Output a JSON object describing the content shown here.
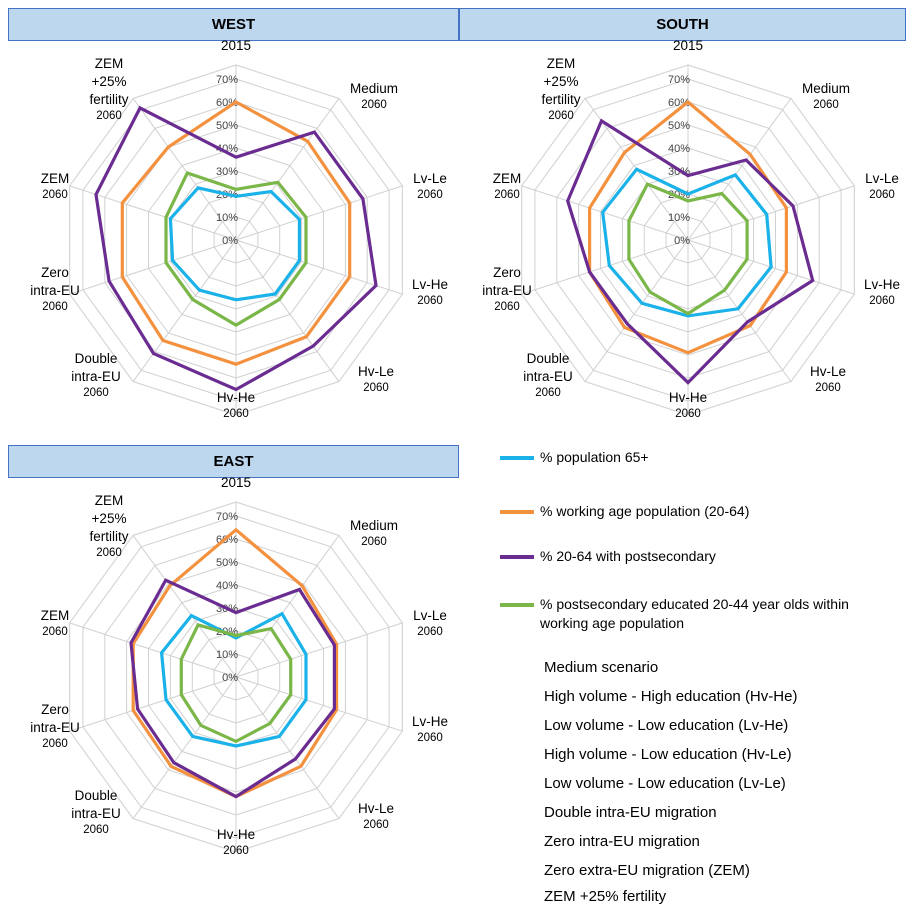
{
  "regions": {
    "west": "WEST",
    "south": "SOUTH",
    "east": "EAST"
  },
  "legend": [
    {
      "label": "% population 65+",
      "color": "#1ab2e8"
    },
    {
      "label": "% working age population (20-64)",
      "color": "#f4913e"
    },
    {
      "label": "% 20-64  with postsecondary",
      "color": "#6a2c91"
    },
    {
      "label": "% postsecondary educated 20-44 year olds within working age population",
      "color": "#7ab648"
    }
  ],
  "scenarios": [
    "Medium scenario",
    "High volume - High education (Hv-He)",
    "Low volume - Low education (Lv-He)",
    "High volume - Low education (Hv-Le)",
    "Low volume - Low education (Lv-Le)",
    "Double intra-EU migration",
    "Zero intra-EU migration",
    "Zero extra-EU migration (ZEM)",
    "ZEM +25% fertility"
  ],
  "chart_data": [
    {
      "type": "radar",
      "title": "WEST",
      "axes": [
        {
          "label": [
            "2015"
          ]
        },
        {
          "label": [
            "Medium",
            "2060"
          ]
        },
        {
          "label": [
            "Lv-Le",
            "2060"
          ]
        },
        {
          "label": [
            "Lv-He",
            "2060"
          ]
        },
        {
          "label": [
            "Hv-Le",
            "2060"
          ]
        },
        {
          "label": [
            "Hv-He",
            "2060"
          ]
        },
        {
          "label": [
            "Double",
            "intra-EU",
            "2060"
          ]
        },
        {
          "label": [
            "Zero",
            "intra-EU",
            "2060"
          ]
        },
        {
          "label": [
            "ZEM",
            "2060"
          ]
        },
        {
          "label": [
            "ZEM",
            "+25%",
            "fertility",
            "2060"
          ]
        }
      ],
      "ticks": [
        "0%",
        "10%",
        "20%",
        "30%",
        "40%",
        "50%",
        "60%",
        "70%"
      ],
      "rmax": 70,
      "series": [
        {
          "name": "% population 65+",
          "color": "#1ab2e8",
          "values": [
            19,
            26,
            29,
            29,
            29,
            26,
            27,
            29,
            30,
            28
          ]
        },
        {
          "name": "% working age population (20-64)",
          "color": "#f4913e",
          "values": [
            60,
            53,
            52,
            52,
            52,
            54,
            54,
            52,
            52,
            50
          ]
        },
        {
          "name": "% 20-64  with postsecondary",
          "color": "#6a2c91",
          "values": [
            36,
            58,
            58,
            64,
            57,
            65,
            61,
            58,
            64,
            71
          ]
        },
        {
          "name": "% postsecondary educated 20-44 year olds within working age population",
          "color": "#7ab648",
          "values": [
            22,
            31,
            32,
            32,
            32,
            37,
            32,
            32,
            32,
            36
          ]
        }
      ]
    },
    {
      "type": "radar",
      "title": "SOUTH",
      "axes": [
        {
          "label": [
            "2015"
          ]
        },
        {
          "label": [
            "Medium",
            "2060"
          ]
        },
        {
          "label": [
            "Lv-Le",
            "2060"
          ]
        },
        {
          "label": [
            "Lv-He",
            "2060"
          ]
        },
        {
          "label": [
            "Hv-Le",
            "2060"
          ]
        },
        {
          "label": [
            "Hv-He",
            "2060"
          ]
        },
        {
          "label": [
            "Double",
            "intra-EU",
            "2060"
          ]
        },
        {
          "label": [
            "Zero",
            "intra-EU",
            "2060"
          ]
        },
        {
          "label": [
            "ZEM",
            "2060"
          ]
        },
        {
          "label": [
            "ZEM",
            "+25%",
            "fertility",
            "2060"
          ]
        }
      ],
      "ticks": [
        "0%",
        "10%",
        "20%",
        "30%",
        "40%",
        "50%",
        "60%",
        "70%"
      ],
      "rmax": 70,
      "series": [
        {
          "name": "% population 65+",
          "color": "#1ab2e8",
          "values": [
            20,
            35,
            36,
            38,
            37,
            33,
            34,
            36,
            39,
            38
          ]
        },
        {
          "name": "% working age population (20-64)",
          "color": "#f4913e",
          "values": [
            60,
            46,
            45,
            45,
            46,
            49,
            47,
            45,
            45,
            47
          ]
        },
        {
          "name": "% 20-64  with postsecondary",
          "color": "#6a2c91",
          "values": [
            28,
            43,
            48,
            57,
            44,
            62,
            45,
            45,
            55,
            64
          ]
        },
        {
          "name": "% postsecondary educated 20-44 year olds within working age population",
          "color": "#7ab648",
          "values": [
            17,
            25,
            27,
            27,
            27,
            32,
            28,
            27,
            27,
            30
          ]
        }
      ]
    },
    {
      "type": "radar",
      "title": "EAST",
      "axes": [
        {
          "label": [
            "2015"
          ]
        },
        {
          "label": [
            "Medium",
            "2060"
          ]
        },
        {
          "label": [
            "Lv-Le",
            "2060"
          ]
        },
        {
          "label": [
            "Lv-He",
            "2060"
          ]
        },
        {
          "label": [
            "Hv-Le",
            "2060"
          ]
        },
        {
          "label": [
            "Hv-He",
            "2060"
          ]
        },
        {
          "label": [
            "Double",
            "intra-EU",
            "2060"
          ]
        },
        {
          "label": [
            "Zero",
            "intra-EU",
            "2060"
          ]
        },
        {
          "label": [
            "ZEM",
            "2060"
          ]
        },
        {
          "label": [
            "ZEM",
            "+25%",
            "fertility",
            "2060"
          ]
        }
      ],
      "ticks": [
        "0%",
        "10%",
        "20%",
        "30%",
        "40%",
        "50%",
        "60%",
        "70%"
      ],
      "rmax": 70,
      "series": [
        {
          "name": "% population 65+",
          "color": "#1ab2e8",
          "values": [
            17,
            34,
            32,
            32,
            32,
            30,
            32,
            32,
            34,
            33
          ]
        },
        {
          "name": "% working age population (20-64)",
          "color": "#f4913e",
          "values": [
            64,
            49,
            46,
            46,
            48,
            52,
            48,
            47,
            47,
            49
          ]
        },
        {
          "name": "% 20-64  with postsecondary",
          "color": "#6a2c91",
          "values": [
            28,
            47,
            45,
            45,
            44,
            52,
            46,
            45,
            48,
            52
          ]
        },
        {
          "name": "% postsecondary educated 20-44 year olds within working age population",
          "color": "#7ab648",
          "values": [
            18,
            26,
            25,
            25,
            25,
            28,
            26,
            25,
            25,
            28
          ]
        }
      ]
    }
  ]
}
